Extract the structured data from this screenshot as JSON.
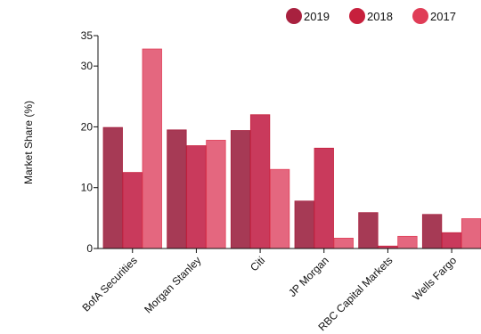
{
  "colors": {
    "2019": "#a63a55",
    "2018": "#c93a5c",
    "2017": "#e4677f",
    "2019_legend": "#a8213f",
    "2018_legend": "#c7203d",
    "2017_legend": "#e03d57",
    "axis": "#111111"
  },
  "chart_data": {
    "type": "bar",
    "title": "",
    "xlabel": "",
    "ylabel": "Market Share (%)",
    "ylim": [
      0,
      35
    ],
    "yticks": [
      0,
      10,
      20,
      30,
      35
    ],
    "grid": false,
    "legend_position": "top-right",
    "categories": [
      "BofA Securities",
      "Morgan Stanley",
      "Citi",
      "JP Morgan",
      "RBC Capital Markets",
      "Wells Fargo"
    ],
    "series": [
      {
        "name": "2019",
        "values": [
          19.9,
          19.5,
          19.4,
          7.8,
          5.9,
          5.6
        ]
      },
      {
        "name": "2018",
        "values": [
          12.5,
          16.9,
          22.0,
          16.5,
          0.4,
          2.6
        ]
      },
      {
        "name": "2017",
        "values": [
          32.8,
          17.8,
          13.0,
          1.7,
          2.0,
          4.9
        ]
      }
    ]
  }
}
